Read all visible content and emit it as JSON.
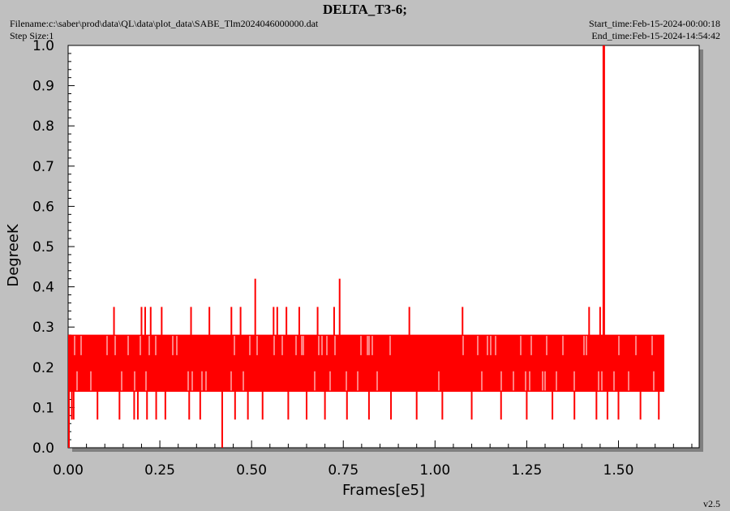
{
  "header": {
    "title": "DELTA_T3-6;",
    "filename": "Filename:c:\\saber\\prod\\data\\QL\\data\\plot_data\\SABE_Tlm2024046000000.dat",
    "step_size": "Step Size:1",
    "start_time": "Start_time:Feb-15-2024-00:00:18",
    "end_time": "End_time:Feb-15-2024-14:54:42"
  },
  "footer": {
    "version": "v2.5"
  },
  "colors": {
    "series": "#ff0000",
    "background": "#c0c0c0",
    "plot_bg": "#ffffff"
  },
  "chart_data": {
    "type": "line",
    "title": "DELTA_T3-6;",
    "xlabel": "Frames[e5]",
    "ylabel": "DegreeK",
    "xlim": [
      0,
      1.72
    ],
    "ylim": [
      0,
      1.0
    ],
    "xticks": [
      "0.00",
      "0.25",
      "0.50",
      "0.75",
      "1.00",
      "1.25",
      "1.50"
    ],
    "xtick_values": [
      0,
      0.25,
      0.5,
      0.75,
      1.0,
      1.25,
      1.5
    ],
    "yticks": [
      "0.0",
      "0.1",
      "0.2",
      "0.3",
      "0.4",
      "0.5",
      "0.6",
      "0.7",
      "0.8",
      "0.9",
      "1.0"
    ],
    "ytick_values": [
      0,
      0.1,
      0.2,
      0.3,
      0.4,
      0.5,
      0.6,
      0.7,
      0.8,
      0.9,
      1.0
    ],
    "grid": false,
    "series": [
      {
        "band": {
          "x_start": 0.0,
          "x_end": 1.625,
          "low": 0.14,
          "high": 0.28,
          "center": 0.21
        },
        "high_spikes": [
          {
            "x": 0.125,
            "y": 0.35
          },
          {
            "x": 0.2,
            "y": 0.35
          },
          {
            "x": 0.21,
            "y": 0.35
          },
          {
            "x": 0.225,
            "y": 0.35
          },
          {
            "x": 0.255,
            "y": 0.35
          },
          {
            "x": 0.335,
            "y": 0.35
          },
          {
            "x": 0.385,
            "y": 0.35
          },
          {
            "x": 0.445,
            "y": 0.35
          },
          {
            "x": 0.47,
            "y": 0.35
          },
          {
            "x": 0.51,
            "y": 0.42
          },
          {
            "x": 0.56,
            "y": 0.35
          },
          {
            "x": 0.57,
            "y": 0.35
          },
          {
            "x": 0.595,
            "y": 0.35
          },
          {
            "x": 0.63,
            "y": 0.35
          },
          {
            "x": 0.68,
            "y": 0.35
          },
          {
            "x": 0.725,
            "y": 0.35
          },
          {
            "x": 0.74,
            "y": 0.42
          },
          {
            "x": 0.93,
            "y": 0.35
          },
          {
            "x": 1.075,
            "y": 0.35
          },
          {
            "x": 1.42,
            "y": 0.35
          },
          {
            "x": 1.45,
            "y": 0.35
          },
          {
            "x": 1.46,
            "y": 1.0
          }
        ],
        "low_spikes": [
          {
            "x": 0.01,
            "y": 0.07
          },
          {
            "x": 0.015,
            "y": 0.07
          },
          {
            "x": 0.08,
            "y": 0.07
          },
          {
            "x": 0.14,
            "y": 0.07
          },
          {
            "x": 0.18,
            "y": 0.07
          },
          {
            "x": 0.19,
            "y": 0.07
          },
          {
            "x": 0.215,
            "y": 0.07
          },
          {
            "x": 0.24,
            "y": 0.07
          },
          {
            "x": 0.265,
            "y": 0.07
          },
          {
            "x": 0.33,
            "y": 0.07
          },
          {
            "x": 0.36,
            "y": 0.07
          },
          {
            "x": 0.42,
            "y": 0.0
          },
          {
            "x": 0.455,
            "y": 0.07
          },
          {
            "x": 0.49,
            "y": 0.07
          },
          {
            "x": 0.53,
            "y": 0.07
          },
          {
            "x": 0.6,
            "y": 0.07
          },
          {
            "x": 0.65,
            "y": 0.07
          },
          {
            "x": 0.7,
            "y": 0.07
          },
          {
            "x": 0.76,
            "y": 0.07
          },
          {
            "x": 0.82,
            "y": 0.07
          },
          {
            "x": 0.88,
            "y": 0.07
          },
          {
            "x": 0.95,
            "y": 0.07
          },
          {
            "x": 1.02,
            "y": 0.07
          },
          {
            "x": 1.1,
            "y": 0.07
          },
          {
            "x": 1.18,
            "y": 0.07
          },
          {
            "x": 1.25,
            "y": 0.07
          },
          {
            "x": 1.32,
            "y": 0.07
          },
          {
            "x": 1.38,
            "y": 0.07
          },
          {
            "x": 1.44,
            "y": 0.07
          },
          {
            "x": 1.47,
            "y": 0.07
          },
          {
            "x": 1.5,
            "y": 0.07
          },
          {
            "x": 1.56,
            "y": 0.07
          },
          {
            "x": 1.61,
            "y": 0.07
          }
        ],
        "start_spike": {
          "x": 0.0,
          "y": 0.0
        }
      }
    ]
  }
}
